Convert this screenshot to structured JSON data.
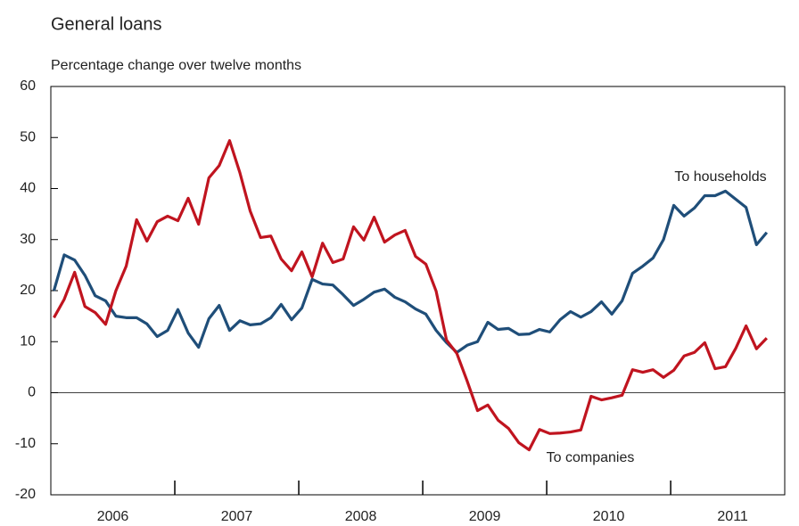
{
  "chart_data": {
    "type": "line",
    "title": "General loans",
    "subtitle": "Percentage change over twelve months",
    "annotations": [
      "To households",
      "To companies"
    ],
    "x": [
      2006.025,
      2006.108,
      2006.192,
      2006.275,
      2006.358,
      2006.442,
      2006.525,
      2006.608,
      2006.692,
      2006.775,
      2006.858,
      2006.942,
      2007.025,
      2007.108,
      2007.192,
      2007.275,
      2007.358,
      2007.442,
      2007.525,
      2007.608,
      2007.692,
      2007.775,
      2007.858,
      2007.942,
      2008.025,
      2008.108,
      2008.192,
      2008.275,
      2008.358,
      2008.442,
      2008.525,
      2008.608,
      2008.692,
      2008.775,
      2008.858,
      2008.942,
      2009.025,
      2009.108,
      2009.192,
      2009.275,
      2009.358,
      2009.442,
      2009.525,
      2009.608,
      2009.692,
      2009.775,
      2009.858,
      2009.942,
      2010.025,
      2010.108,
      2010.192,
      2010.275,
      2010.358,
      2010.442,
      2010.525,
      2010.608,
      2010.692,
      2010.775,
      2010.858,
      2010.942,
      2011.025,
      2011.108,
      2011.192,
      2011.275,
      2011.358,
      2011.442,
      2011.525,
      2011.608,
      2011.692,
      2011.775
    ],
    "series": [
      {
        "name": "To households",
        "color": "#1f4e79",
        "values": [
          20,
          27,
          26,
          23,
          19,
          18,
          15,
          14.7,
          14.7,
          13.5,
          11,
          12.2,
          16.3,
          11.7,
          8.9,
          14.5,
          17.1,
          12.2,
          14.1,
          13.3,
          13.5,
          14.7,
          17.3,
          14.3,
          16.6,
          22.2,
          21.3,
          21.1,
          19.2,
          17.1,
          18.3,
          19.7,
          20.3,
          18.7,
          17.8,
          16.4,
          15.4,
          12.2,
          9.8,
          7.9,
          9.3,
          10,
          13.8,
          12.4,
          12.6,
          11.4,
          11.5,
          12.4,
          11.9,
          14.3,
          15.9,
          14.8,
          15.9,
          17.8,
          15.4,
          18,
          23.4,
          24.8,
          26.4,
          30,
          36.7,
          34.6,
          36.2,
          38.6,
          38.6,
          39.5,
          37.9,
          36.3,
          29,
          31.4
        ]
      },
      {
        "name": "To companies",
        "color": "#c0141f",
        "values": [
          14.7,
          18.3,
          23.6,
          16.9,
          15.7,
          13.4,
          20,
          24.8,
          33.9,
          29.7,
          33.5,
          34.6,
          33.7,
          38.1,
          33,
          42.1,
          44.5,
          49.4,
          43.1,
          35.6,
          30.4,
          30.7,
          26.2,
          23.9,
          27.6,
          22.7,
          29.3,
          25.5,
          26.2,
          32.5,
          29.9,
          34.4,
          29.5,
          30.9,
          31.8,
          26.7,
          25.2,
          19.9,
          10.3,
          7.7,
          2.3,
          -3.5,
          -2.4,
          -5.4,
          -7,
          -9.8,
          -11.2,
          -7.2,
          -8,
          -7.9,
          -7.7,
          -7.3,
          -0.7,
          -1.4,
          -1,
          -0.5,
          4.5,
          4,
          4.5,
          3,
          4.4,
          7.2,
          7.9,
          9.8,
          4.7,
          5.1,
          8.7,
          13.1,
          8.6,
          10.7
        ]
      }
    ],
    "xlim": [
      2006,
      2011.92
    ],
    "xticks": [
      {
        "value": 2006.5,
        "label": "2006"
      },
      {
        "value": 2007.5,
        "label": "2007"
      },
      {
        "value": 2008.5,
        "label": "2008"
      },
      {
        "value": 2009.5,
        "label": "2009"
      },
      {
        "value": 2010.5,
        "label": "2010"
      },
      {
        "value": 2011.5,
        "label": "2011"
      }
    ],
    "xticks_minor": [
      2007,
      2008,
      2009,
      2010,
      2011
    ],
    "ylim": [
      -20,
      60
    ],
    "yticks": [
      -20,
      -10,
      0,
      10,
      20,
      30,
      40,
      50,
      60
    ],
    "zero_line": true,
    "grid": false
  }
}
